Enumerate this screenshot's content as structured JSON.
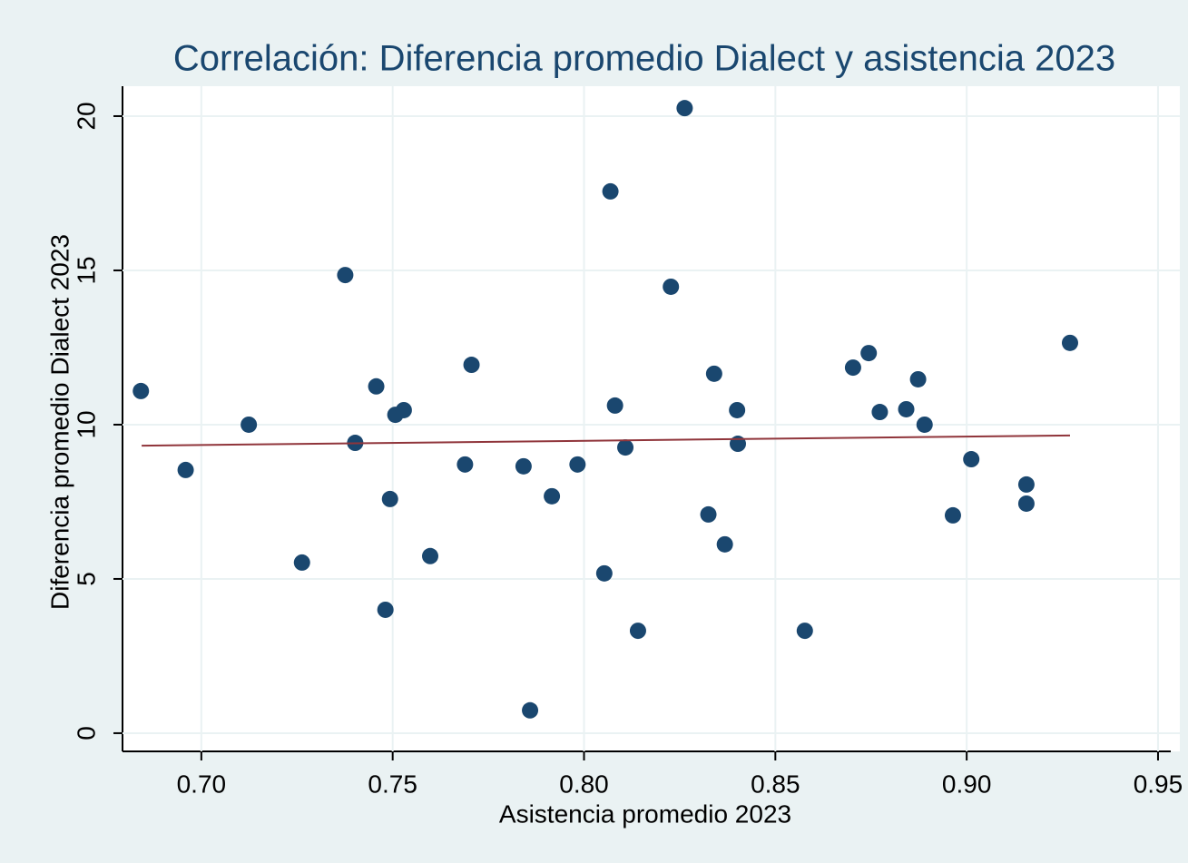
{
  "chart_data": {
    "type": "scatter",
    "title": "Correlación: Diferencia promedio Dialect y asistencia 2023",
    "x_label": "Asistencia promedio 2023",
    "y_label": "Diferencia promedio Dialect 2023",
    "series": [
      {
        "color": "#1a476f",
        "x": [
          0.6842,
          0.6959,
          0.7124,
          0.7263,
          0.7376,
          0.7402,
          0.7457,
          0.7481,
          0.7493,
          0.7507,
          0.7529,
          0.7598,
          0.7689,
          0.7706,
          0.7842,
          0.7859,
          0.7916,
          0.7983,
          0.8053,
          0.8069,
          0.8081,
          0.8108,
          0.8141,
          0.8227,
          0.8263,
          0.8325,
          0.834,
          0.8368,
          0.84,
          0.8402,
          0.8577,
          0.8703,
          0.8744,
          0.8773,
          0.8842,
          0.8873,
          0.889,
          0.8964,
          0.9012,
          0.9156,
          0.9156,
          0.927
        ],
        "values": [
          11.09,
          8.53,
          10.0,
          5.53,
          14.85,
          9.41,
          11.24,
          4.0,
          7.59,
          10.32,
          10.47,
          5.74,
          8.71,
          11.94,
          8.65,
          0.74,
          7.68,
          8.71,
          5.18,
          17.56,
          10.62,
          9.26,
          3.32,
          14.47,
          20.26,
          7.09,
          11.65,
          6.12,
          10.47,
          9.38,
          3.32,
          11.85,
          12.32,
          10.41,
          10.5,
          11.47,
          10.0,
          7.06,
          8.88,
          8.06,
          7.44,
          12.65
        ]
      }
    ],
    "fit_line": {
      "color": "#90353b",
      "x": [
        0.6844,
        0.927
      ],
      "values": [
        9.32,
        9.65
      ]
    },
    "xlim": [
      0.6794,
      0.9557
    ],
    "ylim": [
      -0.59,
      20.97
    ],
    "xticks": [
      {
        "value": 0.7,
        "label": "0.70"
      },
      0.75,
      {
        "value": 0.8,
        "label": "0.80"
      },
      0.85,
      {
        "value": 0.9,
        "label": "0.90"
      },
      0.95
    ],
    "yticks": [
      0,
      5,
      10,
      15,
      20
    ],
    "grid": true
  }
}
